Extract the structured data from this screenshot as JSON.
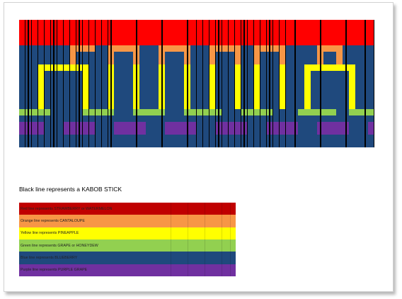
{
  "grid": {
    "cols": 56,
    "rows": 20,
    "colors": {
      "R": "#ff0000",
      "O": "#f79646",
      "Y": "#ffff00",
      "G": "#92d050",
      "B": "#1f497d",
      "P": "#7030a0"
    },
    "pattern": [
      "RRRRRRRRRRRRRRRRRRRRRRRRRRRRRRRRRRRRRRRRRRRRRRRRRRRRRRRR",
      "RRRRRRRRRRRRRRRRRRRRRRRRRRRRRRRRRRRRRRRRRRRRRRRRRRRRRRRR",
      "RRRRRRRRRRRRRRRRRRRRRRRRRRRRRRRRRRRRRRRRRRRRRRRRRRRRRRRR",
      "RRRRRRRRRRRRRRRRRRRRRRRRRRRRRRRRRRRRRRRRRRRRRRRRRRRRRRRR",
      "BBBBBBBBOOOOBBOOOOOBBBOOOOOBBBOOOOOBBOOOOOBBBBBOOOOBBBBB",
      "BBBBBBBBOBBBBBOBBBOBBBOBBBOBBBOBBBOBBOBBBOBBBBBOBBOBBBBB",
      "BBBBBBBBOBBBBBOBBBOBBBOBBBOBBBOBBBOBBOBBBOBBBBBOBBOBBBBB",
      "BBBYYYYYYYYBBBYBBBYBBBYBBBYBBBYBBBYBBYBBBYBBBYYYYYYYYBBB",
      "BBBYBBBBBBYBBBYBBBYBBBYBBBYBBBYBBBYBBYBBBYBBBYBBBBBBYBBB",
      "BBBYBBBBBBYBBBYBBBYBBBYBBBYBBBYBBBYBBYBBBYBBBYBBBBBBYBBB",
      "BBBYBBBBBBYBBBYBBBYBBBYBBBYBBBYBBBYBBYBBBYBBBYBBBBBBYBBB",
      "BBBYBBBBBBYBBBYBBBYBBBYBBBYBBBYBBBYBBYBBBYBBBYBBBBBBYBBB",
      "BBBYBBBBBBYBBBYBBBYBBBYBBBYBBBYBBBYBBYBBBYBBBYBBBBBBYBBB",
      "BBBYBBBBBBYBBBYBBBYBBBYBBBYBBBYBBBYBBYBBBYBBBYBBBBBBYBBB",
      "GGGGGBBBBBGGGGGBBBGGGGGBBBGGGGGGBBBGGGGGBBBBGGGGGGBBGGGG",
      "BBBBBBBBBBBBBBBBBBBBBBBBBBBBBBBBBBBBBBBBBBBBBBBBBBBBBBBB",
      "PPPPBBBPPPPPBBBPPPPPBBBPPPPPBBBPPPPPBBBPPPPPBBBPPPPPBBBP",
      "PPPPBBBPPPPPBBBPPPPPBBBPPPPPBBBPPPPPBBBPPPPPBBBPPPPPBBBP",
      "BBBBBBBBBBBBBBBBBBBBBBBBBBBBBBBBBBBBBBBBBBBBBBBBBBBBBBBB",
      "BBBBBBBBBBBBBBBBBBBBBBBBBBBBBBBBBBBBBBBBBBBBBBBBBBBBBBBB"
    ],
    "stick_cols": [
      1,
      5,
      9,
      14,
      18,
      22,
      26,
      31,
      35,
      39,
      43,
      47,
      51,
      54
    ]
  },
  "black_note": "Black line represents a KABOB STICK",
  "legend": [
    {
      "text": "Red line represents STRAWBERRY or WATERMELON",
      "color": "#c00000"
    },
    {
      "text": "Orange line represents CANTALOUPE",
      "color": "#f79646"
    },
    {
      "text": "Yellow line represents PINEAPPLE",
      "color": "#ffff00"
    },
    {
      "text": "Green line represents GRAPE or HONEYDEW",
      "color": "#92d050"
    },
    {
      "text": "Blue line represents BLUEBERRY",
      "color": "#1f497d"
    },
    {
      "text": "Purple line represents PURPLE GRAPE",
      "color": "#7030a0"
    }
  ]
}
